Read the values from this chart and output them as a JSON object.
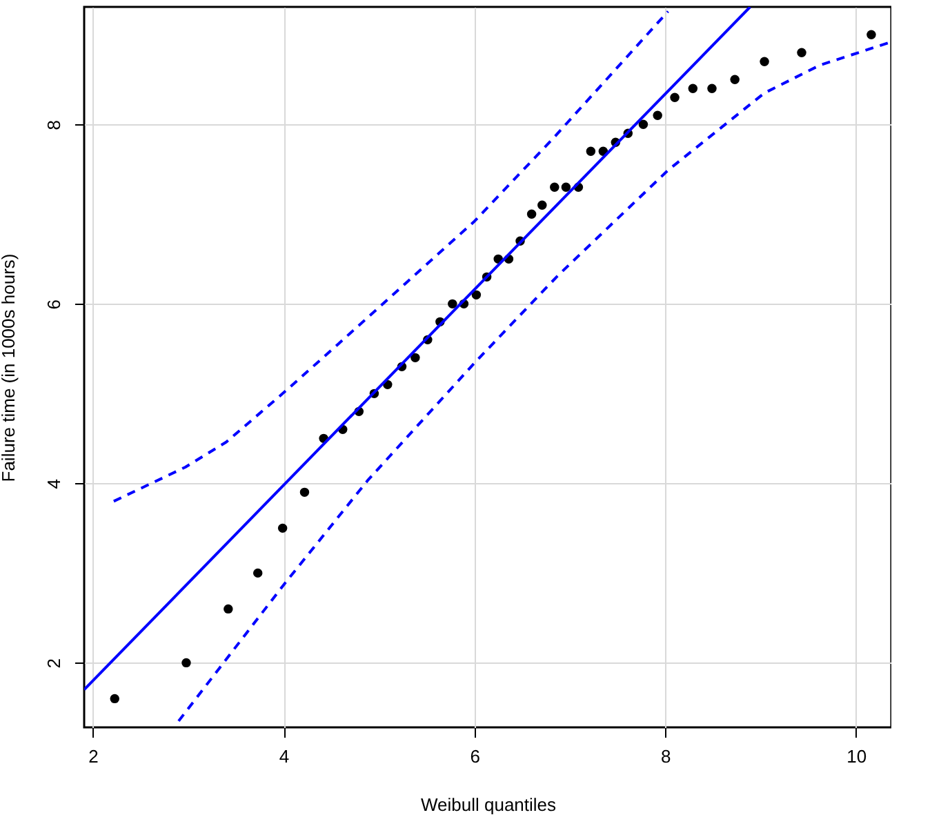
{
  "chart_data": {
    "type": "scatter",
    "xlabel": "Weibull quantiles",
    "ylabel": "Failure time (in 1000s hours)",
    "xlim": [
      1.91,
      10.37
    ],
    "ylim": [
      1.28,
      9.31
    ],
    "xticks": [
      2,
      4,
      6,
      8,
      10
    ],
    "yticks": [
      2,
      4,
      6,
      8
    ],
    "grid": true,
    "series": [
      {
        "color": "#000000",
        "marker": "circle",
        "x": [
          2.23,
          2.98,
          3.42,
          3.73,
          3.99,
          4.22,
          4.42,
          4.62,
          4.79,
          4.95,
          5.09,
          5.24,
          5.38,
          5.51,
          5.64,
          5.77,
          5.89,
          6.02,
          6.13,
          6.25,
          6.36,
          6.48,
          6.6,
          6.71,
          6.84,
          6.96,
          7.09,
          7.22,
          7.35,
          7.48,
          7.61,
          7.77,
          7.92,
          8.1,
          8.29,
          8.49,
          8.73,
          9.04,
          9.43,
          10.16
        ],
        "values": [
          1.6,
          2.0,
          2.6,
          3.0,
          3.5,
          3.9,
          4.5,
          4.6,
          4.8,
          5.0,
          5.1,
          5.3,
          5.4,
          5.6,
          5.8,
          6.0,
          6.0,
          6.1,
          6.3,
          6.5,
          6.5,
          6.7,
          7.0,
          7.1,
          7.3,
          7.3,
          7.3,
          7.7,
          7.7,
          7.8,
          7.9,
          8.0,
          8.1,
          8.3,
          8.4,
          8.4,
          8.5,
          8.7,
          8.8,
          9.0
        ]
      },
      {
        "type": "line",
        "color": "#0000ff",
        "line_style": "solid",
        "x": [
          1.91,
          8.89
        ],
        "values": [
          1.7,
          9.31
        ]
      },
      {
        "type": "line",
        "color": "#0000ff",
        "line_style": "dashed",
        "x": [
          2.22,
          2.97,
          3.4,
          3.99,
          4.56,
          5.28,
          6.0,
          6.83,
          8.03
        ],
        "values": [
          3.8,
          4.18,
          4.46,
          5.0,
          5.54,
          6.23,
          6.92,
          7.85,
          9.26
        ]
      },
      {
        "type": "line",
        "color": "#0000ff",
        "line_style": "dashed",
        "x": [
          2.9,
          4.01,
          4.88,
          6.0,
          6.87,
          8.03,
          9.04,
          9.62,
          10.37
        ],
        "values": [
          1.35,
          2.88,
          4.03,
          5.34,
          6.31,
          7.49,
          8.35,
          8.66,
          8.92
        ]
      }
    ]
  }
}
